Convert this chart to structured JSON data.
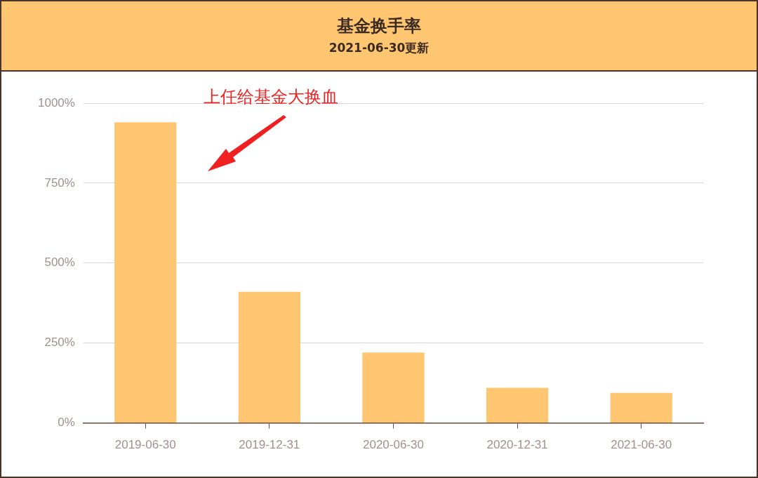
{
  "chart_data": {
    "type": "bar",
    "title": "基金换手率",
    "subtitle": "2021-06-30更新",
    "categories": [
      "2019-06-30",
      "2019-12-31",
      "2020-06-30",
      "2020-12-31",
      "2021-06-30"
    ],
    "values": [
      940,
      410,
      220,
      110,
      94
    ],
    "color": "#ffc672",
    "ylim": [
      0,
      1000
    ],
    "yticks": [
      {
        "value": 0,
        "label": "0%"
      },
      {
        "value": 250,
        "label": "250%"
      },
      {
        "value": 500,
        "label": "500%"
      },
      {
        "value": 750,
        "label": "750%"
      },
      {
        "value": 1000,
        "label": "1000%"
      }
    ],
    "grid": "y",
    "annotations": [
      "上任给基金大换血"
    ]
  }
}
